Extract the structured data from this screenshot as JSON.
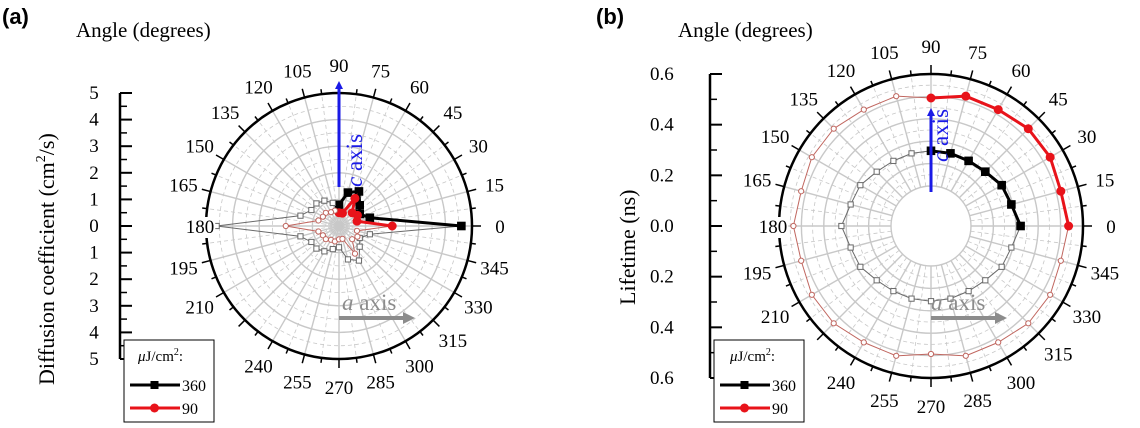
{
  "chart_data": [
    {
      "type": "polar-line",
      "panel_label": "(a)",
      "angle_title": "Angle (degrees)",
      "radial_title_parts": [
        "Diffusion coefficient (cm",
        "2",
        "/s)"
      ],
      "radial_ticks": [
        "5",
        "4",
        "3",
        "2",
        "1",
        "0",
        "1",
        "2",
        "3",
        "4",
        "5"
      ],
      "angle_ticks": [
        "0",
        "15",
        "30",
        "45",
        "60",
        "75",
        "90",
        "105",
        "120",
        "135",
        "150",
        "165",
        "180",
        "195",
        "210",
        "240",
        "255",
        "270",
        "285",
        "300",
        "315",
        "330",
        "345"
      ],
      "axis_annotations": {
        "c_italic": "c",
        "c_text": " axis",
        "a_italic": "a",
        "a_text": " axis"
      },
      "legend": {
        "title_mu": "μ",
        "title_rest": "J/cm",
        "title_sup": "2",
        "title_end": ":"
      },
      "rlim": [
        0,
        5
      ],
      "series": [
        {
          "name": "360",
          "color": "#000000",
          "angles": [
            0,
            15,
            30,
            45,
            60,
            75,
            90,
            105,
            120,
            135,
            150,
            165,
            180,
            195,
            210,
            225,
            240,
            255,
            270,
            285,
            300,
            315,
            330,
            345
          ],
          "values": [
            4.6,
            1.2,
            0.9,
            1.1,
            1.5,
            1.3,
            0.8,
            0.9,
            1.1,
            1.2,
            1.2,
            1.5,
            4.6,
            1.5,
            1.2,
            1.2,
            1.1,
            0.9,
            0.8,
            1.3,
            1.5,
            1.1,
            0.9,
            1.2
          ]
        },
        {
          "name": "90",
          "color": "#e8131a",
          "angles": [
            0,
            15,
            30,
            45,
            60,
            75,
            90,
            105,
            120,
            135,
            150,
            165,
            180,
            195,
            210,
            225,
            240,
            255,
            270,
            285,
            300,
            315,
            330,
            345
          ],
          "values": [
            2.0,
            0.7,
            0.8,
            0.7,
            1.2,
            0.5,
            0.5,
            0.6,
            0.6,
            0.7,
            0.7,
            0.8,
            2.0,
            0.8,
            0.7,
            0.7,
            0.6,
            0.6,
            0.5,
            0.5,
            1.2,
            0.7,
            0.8,
            0.7
          ]
        }
      ]
    },
    {
      "type": "polar-line",
      "panel_label": "(b)",
      "angle_title": "Angle (degrees)",
      "radial_title": "Lifetime (ns)",
      "radial_ticks": [
        "0.6",
        "0.4",
        "0.2",
        "0.0",
        "0.2",
        "0.4",
        "0.6"
      ],
      "angle_ticks": [
        "0",
        "15",
        "30",
        "45",
        "60",
        "75",
        "90",
        "105",
        "120",
        "135",
        "150",
        "165",
        "180",
        "195",
        "210",
        "240",
        "255",
        "270",
        "285",
        "300",
        "315",
        "330",
        "345"
      ],
      "axis_annotations": {
        "c_italic": "c",
        "c_text": " axis",
        "a_italic": "a",
        "a_text": " axis"
      },
      "legend": {
        "title_mu": "μ",
        "title_rest": "J/cm",
        "title_sup": "2",
        "title_end": ":"
      },
      "rlim": [
        0,
        0.7
      ],
      "series": [
        {
          "name": "360",
          "color": "#000000",
          "angles": [
            0,
            15,
            30,
            45,
            60,
            75,
            90,
            105,
            120,
            135,
            150,
            165,
            180,
            195,
            210,
            225,
            240,
            255,
            270,
            285,
            300,
            315,
            330,
            345
          ],
          "values": [
            0.31,
            0.27,
            0.26,
            0.23,
            0.22,
            0.22,
            0.22,
            0.22,
            0.22,
            0.23,
            0.26,
            0.27,
            0.31,
            0.27,
            0.26,
            0.23,
            0.22,
            0.22,
            0.22,
            0.22,
            0.22,
            0.23,
            0.26,
            0.27
          ]
        },
        {
          "name": "90",
          "color": "#e8131a",
          "angles": [
            0,
            15,
            30,
            45,
            60,
            75,
            90,
            105,
            120,
            135,
            150,
            165,
            180,
            195,
            210,
            225,
            240,
            255,
            270,
            285,
            300,
            315,
            330,
            345
          ],
          "values": [
            0.61,
            0.59,
            0.61,
            0.61,
            0.59,
            0.59,
            0.55,
            0.59,
            0.59,
            0.61,
            0.61,
            0.59,
            0.61,
            0.59,
            0.61,
            0.61,
            0.59,
            0.59,
            0.55,
            0.59,
            0.59,
            0.61,
            0.61,
            0.59
          ]
        }
      ]
    }
  ]
}
